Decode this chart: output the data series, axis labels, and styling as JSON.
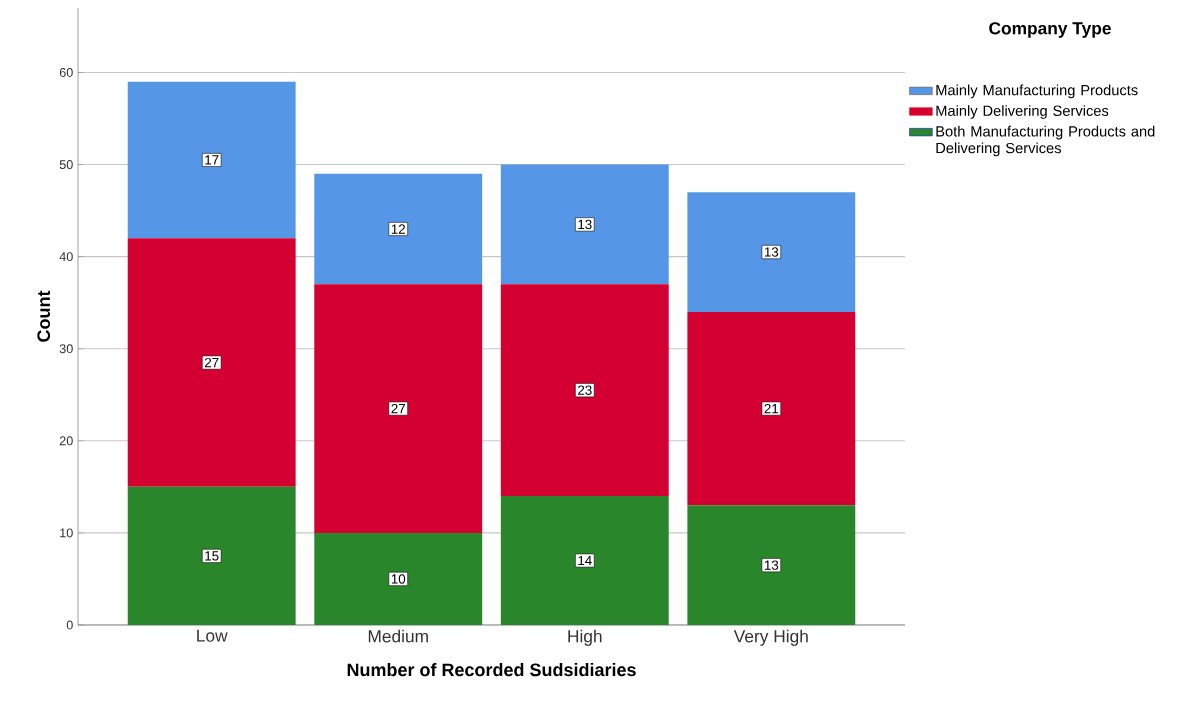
{
  "chart_data": {
    "type": "bar",
    "stacked": true,
    "xlabel": "Number of Recorded Sudsidiaries",
    "ylabel": "Count",
    "legend_title": "Company Type",
    "categories": [
      "Low",
      "Medium",
      "High",
      "Very High"
    ],
    "series": [
      {
        "name": "Both Manufacturing Products and Delivering Services",
        "color": "#2a862a",
        "values": [
          15,
          10,
          14,
          13
        ]
      },
      {
        "name": "Mainly Delivering Services",
        "color": "#d50032",
        "values": [
          27,
          27,
          23,
          21
        ]
      },
      {
        "name": "Mainly Manufacturing Products",
        "color": "#5596e6",
        "values": [
          17,
          12,
          13,
          13
        ]
      }
    ],
    "ylim": [
      0,
      67
    ],
    "yticks": [
      0,
      10,
      20,
      30,
      40,
      50,
      60
    ],
    "grid": "y",
    "legend": "right",
    "data_labels": true
  }
}
